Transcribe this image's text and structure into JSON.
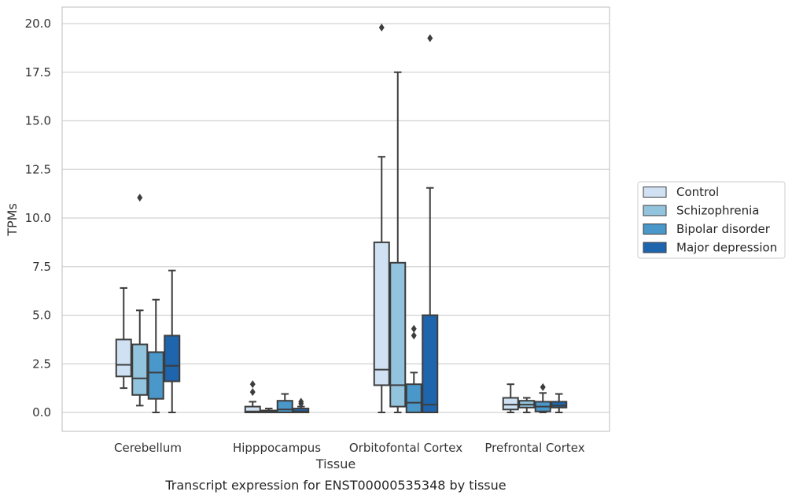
{
  "chart_data": {
    "type": "boxplot",
    "caption": "Transcript expression for ENST00000535348 by tissue",
    "xlabel": "Tissue",
    "ylabel": "TPMs",
    "ylim": [
      -0.9,
      20.8
    ],
    "yticks": [
      "0.0",
      "2.5",
      "5.0",
      "7.5",
      "10.0",
      "12.5",
      "15.0",
      "17.5",
      "20.0"
    ],
    "grid": "horizontal",
    "legend_position": "right",
    "categories": [
      "Cerebellum",
      "Hipppocampus",
      "Orbitofontal Cortex",
      "Prefrontal Cortex"
    ],
    "series": [
      {
        "name": "Control",
        "color": "#cfe1f2",
        "boxes": [
          {
            "whisker_low": 1.25,
            "q1": 1.85,
            "median": 2.45,
            "q3": 3.75,
            "whisker_high": 6.4,
            "outliers": []
          },
          {
            "whisker_low": 0.0,
            "q1": 0.0,
            "median": 0.05,
            "q3": 0.3,
            "whisker_high": 0.55,
            "outliers": [
              1.05,
              1.45
            ]
          },
          {
            "whisker_low": 0.0,
            "q1": 1.4,
            "median": 2.2,
            "q3": 8.75,
            "whisker_high": 13.15,
            "outliers": [
              19.8
            ]
          },
          {
            "whisker_low": 0.0,
            "q1": 0.15,
            "median": 0.4,
            "q3": 0.75,
            "whisker_high": 1.45,
            "outliers": []
          }
        ]
      },
      {
        "name": "Schizophrenia",
        "color": "#93c4de",
        "boxes": [
          {
            "whisker_low": 0.35,
            "q1": 0.9,
            "median": 1.75,
            "q3": 3.5,
            "whisker_high": 5.25,
            "outliers": [
              11.05
            ]
          },
          {
            "whisker_low": 0.0,
            "q1": 0.0,
            "median": 0.05,
            "q3": 0.1,
            "whisker_high": 0.2,
            "outliers": []
          },
          {
            "whisker_low": 0.0,
            "q1": 0.3,
            "median": 1.4,
            "q3": 7.7,
            "whisker_high": 17.5,
            "outliers": []
          },
          {
            "whisker_low": 0.0,
            "q1": 0.25,
            "median": 0.4,
            "q3": 0.6,
            "whisker_high": 0.75,
            "outliers": []
          }
        ]
      },
      {
        "name": "Bipolar disorder",
        "color": "#4a97c9",
        "boxes": [
          {
            "whisker_low": 0.0,
            "q1": 0.7,
            "median": 2.05,
            "q3": 3.1,
            "whisker_high": 5.8,
            "outliers": []
          },
          {
            "whisker_low": 0.0,
            "q1": 0.0,
            "median": 0.15,
            "q3": 0.6,
            "whisker_high": 0.95,
            "outliers": []
          },
          {
            "whisker_low": 0.0,
            "q1": 0.0,
            "median": 0.5,
            "q3": 1.45,
            "whisker_high": 2.05,
            "outliers": [
              3.95,
              4.3
            ]
          },
          {
            "whisker_low": 0.0,
            "q1": 0.05,
            "median": 0.3,
            "q3": 0.55,
            "whisker_high": 1.0,
            "outliers": [
              1.3
            ]
          }
        ]
      },
      {
        "name": "Major depression",
        "color": "#1f65ad",
        "boxes": [
          {
            "whisker_low": 0.0,
            "q1": 1.6,
            "median": 2.4,
            "q3": 3.95,
            "whisker_high": 7.3,
            "outliers": []
          },
          {
            "whisker_low": 0.0,
            "q1": 0.0,
            "median": 0.05,
            "q3": 0.2,
            "whisker_high": 0.3,
            "outliers": [
              0.45,
              0.55
            ]
          },
          {
            "whisker_low": 0.0,
            "q1": 0.0,
            "median": 0.4,
            "q3": 5.0,
            "whisker_high": 11.55,
            "outliers": [
              19.25
            ]
          },
          {
            "whisker_low": 0.0,
            "q1": 0.25,
            "median": 0.35,
            "q3": 0.55,
            "whisker_high": 0.95,
            "outliers": []
          }
        ]
      }
    ]
  }
}
